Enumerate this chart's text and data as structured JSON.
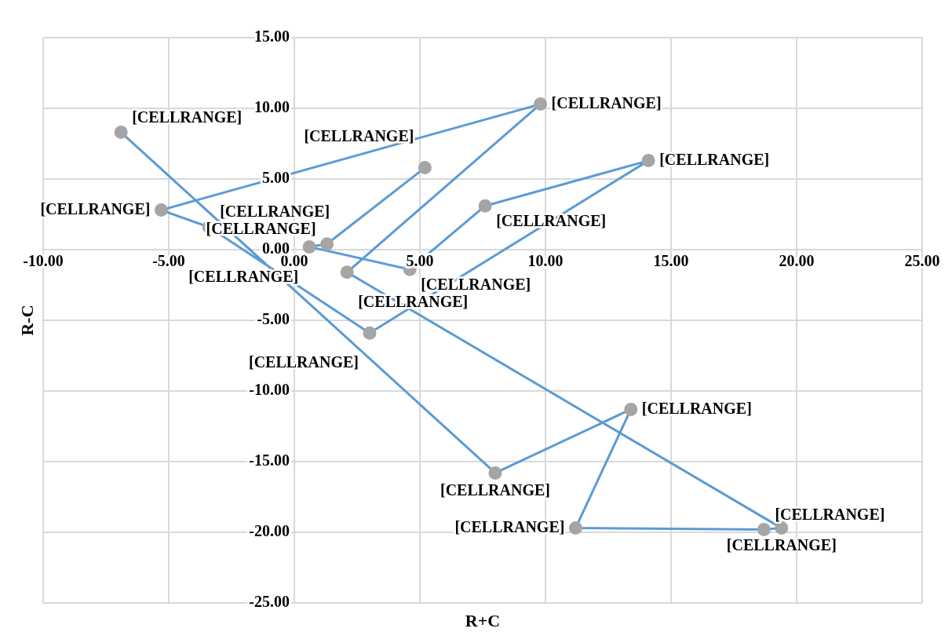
{
  "chart_data": {
    "type": "line",
    "xlabel": "R+C",
    "ylabel": "R-C",
    "xlim": [
      -10,
      25
    ],
    "xticks": [
      {
        "value": -10,
        "label": "-10.00"
      },
      {
        "value": -5,
        "label": "-5.00"
      },
      {
        "value": 0,
        "label": "0.00"
      },
      {
        "value": 5,
        "label": "5.00"
      },
      {
        "value": 10,
        "label": "10.00"
      },
      {
        "value": 15,
        "label": "15.00"
      },
      {
        "value": 20,
        "label": "20.00"
      },
      {
        "value": 25,
        "label": "25.00"
      }
    ],
    "ylim": [
      -25,
      15
    ],
    "yticks": [
      {
        "value": -25,
        "label": "-25.00"
      },
      {
        "value": -20,
        "label": "-20.00"
      },
      {
        "value": -15,
        "label": "-15.00"
      },
      {
        "value": -10,
        "label": "-10.00"
      },
      {
        "value": -5,
        "label": "-5.00"
      },
      {
        "value": 0,
        "label": "0.00"
      },
      {
        "value": 5,
        "label": "5.00"
      },
      {
        "value": 10,
        "label": "10.00"
      },
      {
        "value": 15,
        "label": "15.00"
      }
    ],
    "grid": true,
    "legend": false,
    "marker": "circle",
    "line_style": "solid",
    "series": [
      {
        "color": "#5b9bd5",
        "colors": [
          "#a5a5a5",
          "#a5a5a5",
          "#a5a5a5",
          "#a5a5a5",
          "#a5a5a5",
          "#a5a5a5",
          "#a5a5a5",
          "#a5a5a5",
          "#a5a5a5",
          "#a5a5a5",
          "#a5a5a5",
          "#a5a5a5",
          "#a5a5a5",
          "#a5a5a5",
          "#a5a5a5",
          "#a5a5a5",
          "#a5a5a5"
        ],
        "x": [
          -6.9,
          8.0,
          13.4,
          11.2,
          18.7,
          19.4,
          2.1,
          9.8,
          -5.3,
          -3.4,
          3.0,
          14.1,
          7.6,
          4.6,
          0.6,
          1.3,
          5.2
        ],
        "values": [
          8.3,
          -15.8,
          -11.3,
          -19.7,
          -19.8,
          -19.7,
          -1.6,
          10.3,
          2.8,
          1.6,
          -5.9,
          6.3,
          3.1,
          -1.4,
          0.2,
          0.4,
          5.8
        ],
        "value_labels": [
          "[CELLRANGE]",
          "[CELLRANGE]",
          "[CELLRANGE]",
          "[CELLRANGE]",
          "[CELLRANGE]",
          "[CELLRANGE]",
          "[CELLRANGE]",
          "[CELLRANGE]",
          "[CELLRANGE]",
          "[CELLRANGE]",
          "[CELLRANGE]",
          "[CELLRANGE]",
          "[CELLRANGE]",
          "[CELLRANGE]",
          "[CELLRANGE]",
          "[CELLRANGE]",
          "[CELLRANGE]"
        ]
      }
    ]
  }
}
